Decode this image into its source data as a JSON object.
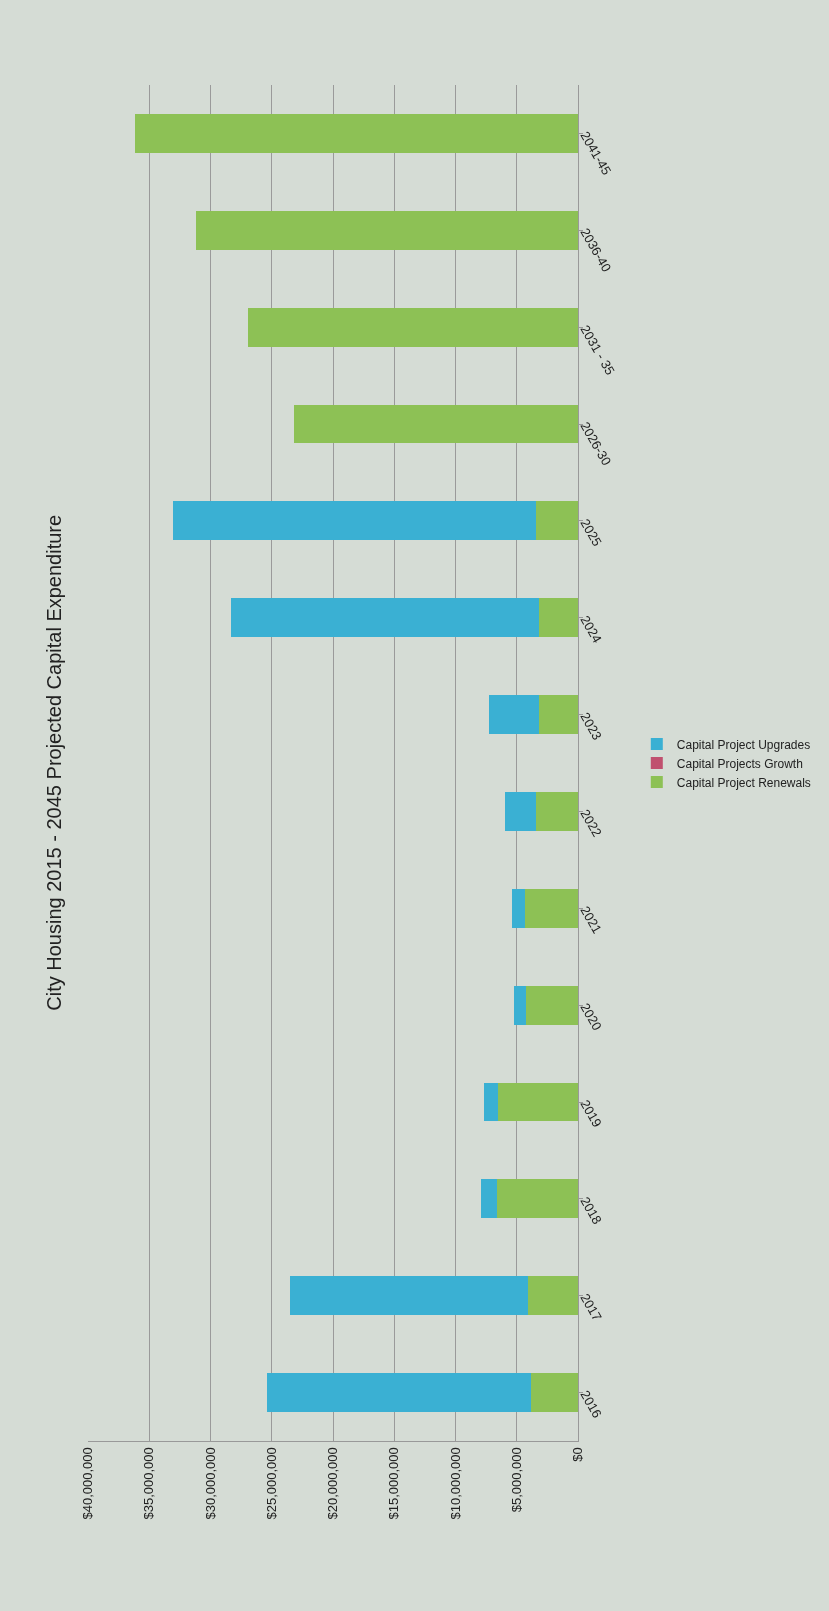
{
  "chart_data": {
    "type": "bar",
    "orientation": "horizontal",
    "stacked": true,
    "title": "City Housing 2015 - 2045 Projected Capital Expenditure",
    "categories": [
      "2041-45",
      "2036-40",
      "2031 - 35",
      "2026-30",
      "2025",
      "2024",
      "2023",
      "2022",
      "2021",
      "2020",
      "2019",
      "2018",
      "2017",
      "2016"
    ],
    "series": [
      {
        "name": "Capital Project Renewals",
        "color": "#8dc155",
        "values": [
          36200000.0,
          31200000.0,
          26900000.0,
          23200000.0,
          3400000.0,
          3200000.0,
          3150000.0,
          3400000.0,
          4300000.0,
          4250000.0,
          6500000.0,
          6600000.0,
          4100000.0,
          3800000.0
        ]
      },
      {
        "name": "Capital Projects Growth",
        "color": "#c0506e",
        "values": [
          0,
          0,
          0,
          0,
          0,
          0,
          0,
          0,
          0,
          0,
          0,
          0,
          0,
          0
        ]
      },
      {
        "name": "Capital Project Upgrades",
        "color": "#3ab0d3",
        "values": [
          0,
          0,
          0,
          0,
          29700000.0,
          25100000.0,
          4100000.0,
          2600000.0,
          1050000.0,
          950000.0,
          1150000.0,
          1300000.0,
          19400000.0,
          21600000.0
        ]
      }
    ],
    "xlim": [
      40000000,
      0
    ],
    "xticks": [
      {
        "value": 40000000,
        "label": "$40,000,000"
      },
      {
        "value": 35000000,
        "label": "$35,000,000"
      },
      {
        "value": 30000000,
        "label": "$30,000,000"
      },
      {
        "value": 25000000,
        "label": "$25,000,000"
      },
      {
        "value": 20000000,
        "label": "$20,000,000"
      },
      {
        "value": 15000000,
        "label": "$15,000,000"
      },
      {
        "value": 10000000,
        "label": "$10,000,000"
      },
      {
        "value": 5000000,
        "label": "$5,000,000"
      },
      {
        "value": 0,
        "label": "$0"
      }
    ],
    "grid": "x",
    "legend": "right"
  }
}
